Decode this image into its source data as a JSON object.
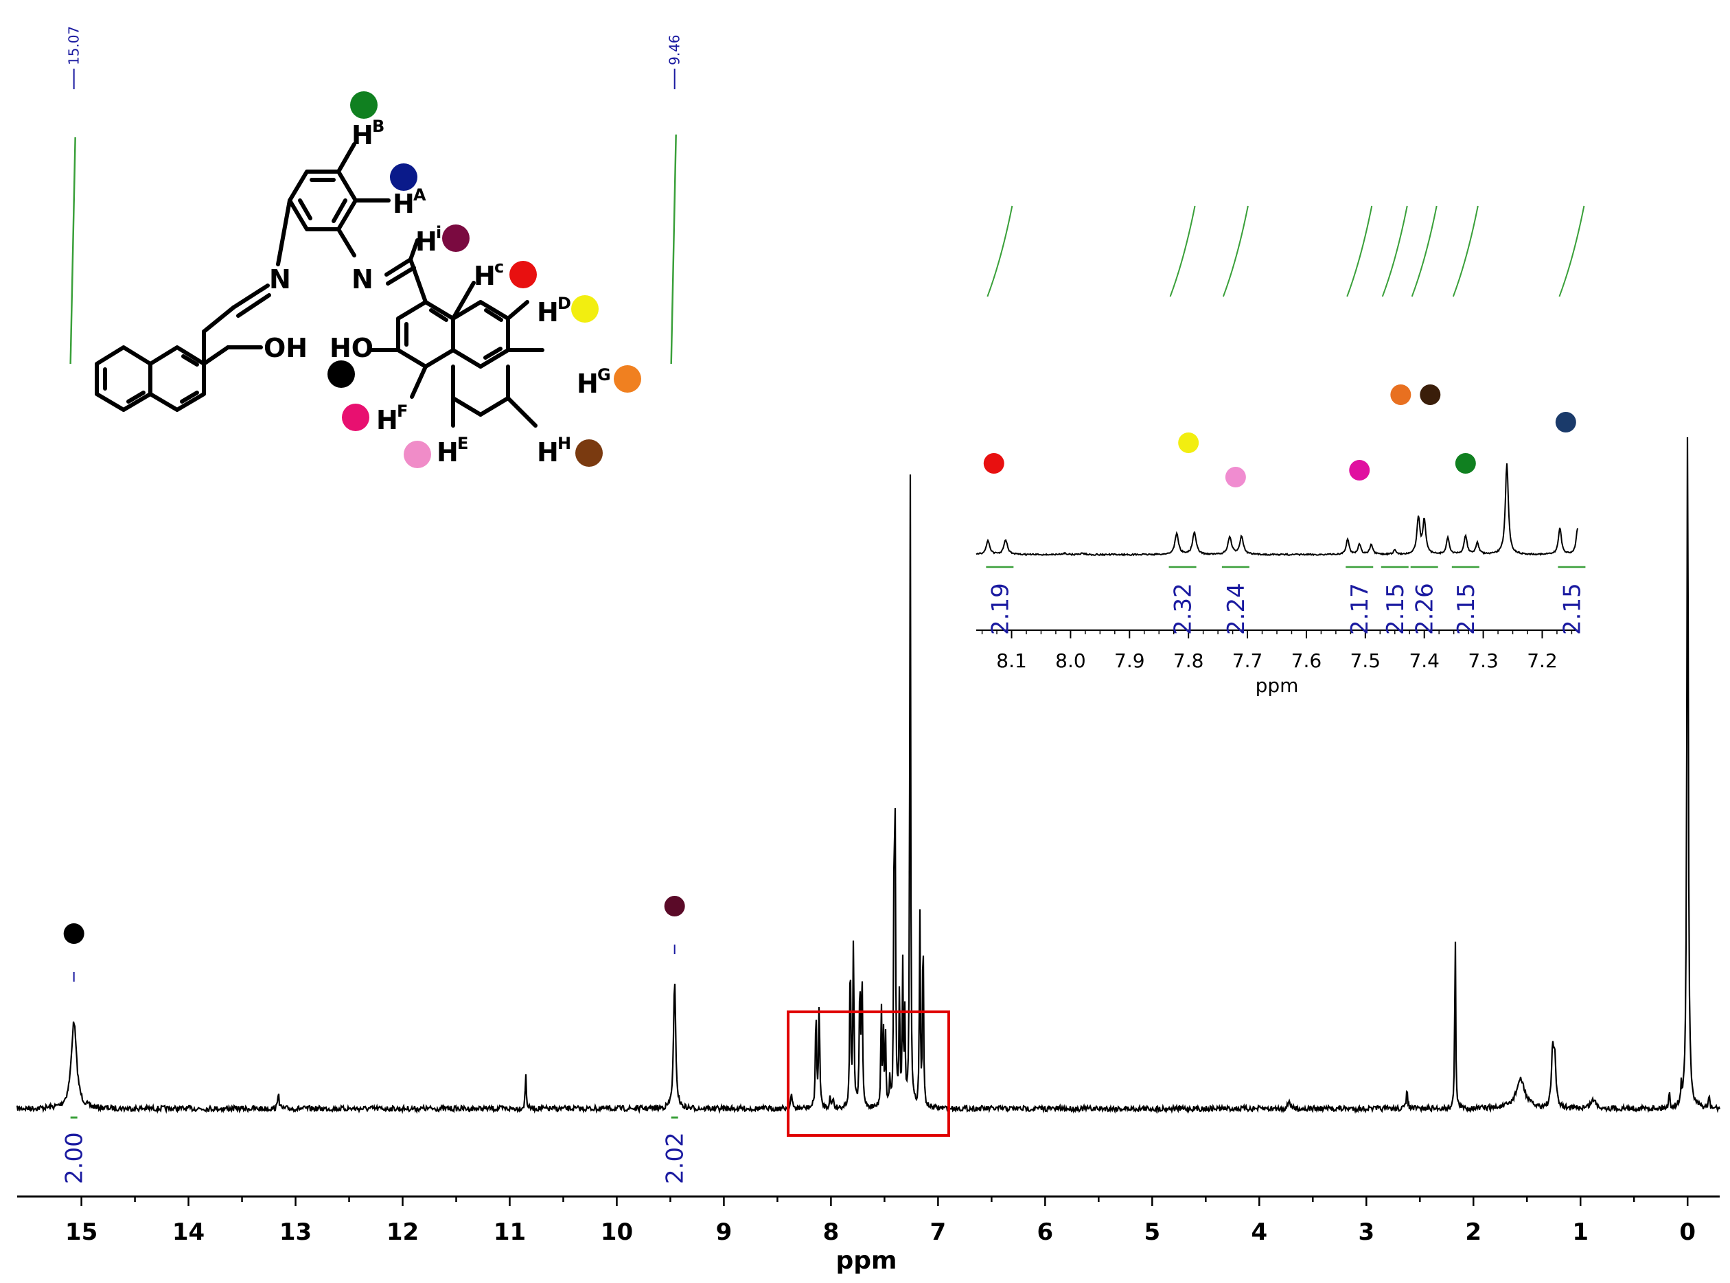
{
  "chart_data": {
    "type": "line",
    "xlabel": "ppm",
    "xlim": [
      15.6,
      -0.3
    ],
    "x_ticks": [
      "15",
      "14",
      "13",
      "12",
      "11",
      "10",
      "9",
      "8",
      "7",
      "6",
      "5",
      "4",
      "3",
      "2",
      "1",
      "0"
    ],
    "peak_labels": [
      "15.07",
      "9.46"
    ],
    "integrals": [
      {
        "ppm": 15.07,
        "value": "2.00"
      },
      {
        "ppm": 9.46,
        "value": "2.02"
      }
    ],
    "peaks": [
      {
        "ppm": 15.07,
        "height": 0.3,
        "width": 0.03
      },
      {
        "ppm": 13.16,
        "height": 0.07,
        "width": 0.006
      },
      {
        "ppm": 10.85,
        "height": 0.12,
        "width": 0.006
      },
      {
        "ppm": 9.46,
        "height": 0.44,
        "width": 0.012
      },
      {
        "ppm": 8.37,
        "height": 0.05,
        "width": 0.008
      },
      {
        "ppm": 8.14,
        "height": 0.35,
        "width": 0.006
      },
      {
        "ppm": 8.11,
        "height": 0.37,
        "width": 0.006
      },
      {
        "ppm": 8.01,
        "height": 0.04,
        "width": 0.006
      },
      {
        "ppm": 7.98,
        "height": 0.04,
        "width": 0.006
      },
      {
        "ppm": 7.82,
        "height": 0.53,
        "width": 0.006
      },
      {
        "ppm": 7.79,
        "height": 0.56,
        "width": 0.006
      },
      {
        "ppm": 7.73,
        "height": 0.44,
        "width": 0.006
      },
      {
        "ppm": 7.71,
        "height": 0.46,
        "width": 0.006
      },
      {
        "ppm": 7.53,
        "height": 0.38,
        "width": 0.005
      },
      {
        "ppm": 7.51,
        "height": 0.26,
        "width": 0.005
      },
      {
        "ppm": 7.49,
        "height": 0.24,
        "width": 0.005
      },
      {
        "ppm": 7.45,
        "height": 0.1,
        "width": 0.005
      },
      {
        "ppm": 7.41,
        "height": 0.92,
        "width": 0.005
      },
      {
        "ppm": 7.4,
        "height": 0.85,
        "width": 0.005
      },
      {
        "ppm": 7.36,
        "height": 0.42,
        "width": 0.005
      },
      {
        "ppm": 7.33,
        "height": 0.48,
        "width": 0.005
      },
      {
        "ppm": 7.31,
        "height": 0.3,
        "width": 0.005
      },
      {
        "ppm": 7.26,
        "height": 2.3,
        "width": 0.005
      },
      {
        "ppm": 7.17,
        "height": 0.68,
        "width": 0.005
      },
      {
        "ppm": 7.14,
        "height": 0.67,
        "width": 0.005
      },
      {
        "ppm": 3.72,
        "height": 0.03,
        "width": 0.012
      },
      {
        "ppm": 2.62,
        "height": 0.08,
        "width": 0.006
      },
      {
        "ppm": 2.17,
        "height": 0.65,
        "width": 0.005
      },
      {
        "ppm": 1.56,
        "height": 0.1,
        "width": 0.05
      },
      {
        "ppm": 1.26,
        "height": 0.19,
        "width": 0.012
      },
      {
        "ppm": 1.24,
        "height": 0.16,
        "width": 0.012
      },
      {
        "ppm": 0.88,
        "height": 0.03,
        "width": 0.03
      },
      {
        "ppm": 0.17,
        "height": 0.06,
        "width": 0.005
      },
      {
        "ppm": 0.06,
        "height": 0.06,
        "width": 0.005
      },
      {
        "ppm": 0.0,
        "height": 2.4,
        "width": 0.008
      },
      {
        "ppm": -0.2,
        "height": 0.05,
        "width": 0.005
      }
    ],
    "peak_markers": [
      {
        "ppm": 15.07,
        "color": "#000000"
      },
      {
        "ppm": 9.46,
        "color": "#5a0a28"
      }
    ],
    "zoom_box": {
      "ppm_from": 8.4,
      "ppm_to": 6.9,
      "color": "#e00000"
    },
    "inset": {
      "xlabel": "ppm",
      "xlim": [
        8.16,
        7.14
      ],
      "x_ticks": [
        "8.1",
        "8.0",
        "7.9",
        "7.8",
        "7.7",
        "7.6",
        "7.5",
        "7.4",
        "7.3",
        "7.2"
      ],
      "integrals": [
        {
          "ppm": 8.12,
          "value": "2.19"
        },
        {
          "ppm": 7.81,
          "value": "2.32"
        },
        {
          "ppm": 7.72,
          "value": "2.24"
        },
        {
          "ppm": 7.51,
          "value": "2.17"
        },
        {
          "ppm": 7.45,
          "value": "2.15"
        },
        {
          "ppm": 7.4,
          "value": "2.26"
        },
        {
          "ppm": 7.33,
          "value": "2.15"
        },
        {
          "ppm": 7.15,
          "value": "2.15"
        }
      ],
      "peak_markers": [
        {
          "ppm": 8.13,
          "color": "#e81010"
        },
        {
          "ppm": 7.8,
          "color": "#f2ee10"
        },
        {
          "ppm": 7.72,
          "color": "#f08cd0"
        },
        {
          "ppm": 7.51,
          "color": "#e010a0"
        },
        {
          "ppm": 7.44,
          "color": "#e87020"
        },
        {
          "ppm": 7.39,
          "color": "#3a1e0a"
        },
        {
          "ppm": 7.33,
          "color": "#108020"
        },
        {
          "ppm": 7.16,
          "color": "#1a3a6a"
        }
      ]
    }
  },
  "structure": {
    "labels": {
      "n_left": "N",
      "n_right": "N",
      "oh_left": "OH",
      "ho_right": "HO"
    },
    "protons": [
      {
        "base": "H",
        "sup": "B",
        "color": "#108020"
      },
      {
        "base": "H",
        "sup": "A",
        "color": "#0a1a8a"
      },
      {
        "base": "H",
        "sup": "i",
        "color": "#7a0a40"
      },
      {
        "base": "H",
        "sup": "c",
        "color": "#e81010"
      },
      {
        "base": "H",
        "sup": "D",
        "color": "#f2ee10"
      },
      {
        "base": "H",
        "sup": "G",
        "color": "#f08020"
      },
      {
        "base": "H",
        "sup": "F",
        "color": "#e81070"
      },
      {
        "base": "H",
        "sup": "E",
        "color": "#f08cc8"
      },
      {
        "base": "H",
        "sup": "H",
        "color": "#7a3a10"
      }
    ],
    "oh_marker_color": "#000000"
  }
}
